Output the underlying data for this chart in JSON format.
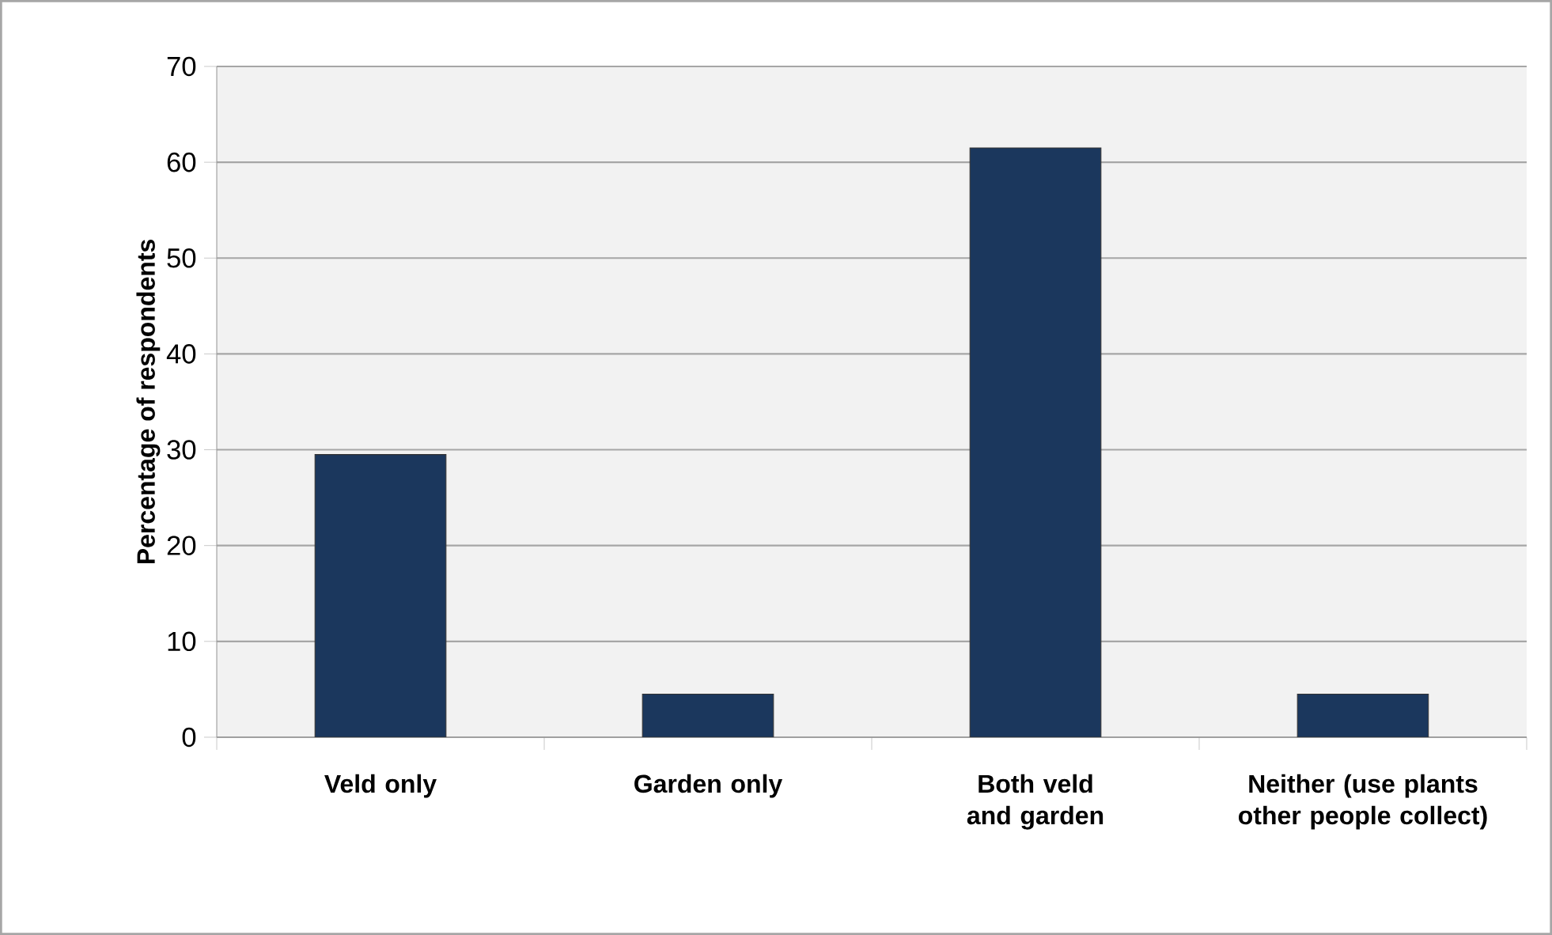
{
  "chart_data": {
    "type": "bar",
    "ylabel": "Percentage of respondents",
    "categories": [
      "Veld only",
      "Garden only",
      "Both veld and garden",
      "Neither (use plants other people collect)"
    ],
    "values": [
      29.5,
      4.5,
      61.5,
      4.5
    ],
    "color": "#1b375d",
    "ylim": [
      0,
      70
    ],
    "yticks": [
      0,
      10,
      20,
      30,
      40,
      50,
      60,
      70
    ],
    "grid": "y"
  }
}
